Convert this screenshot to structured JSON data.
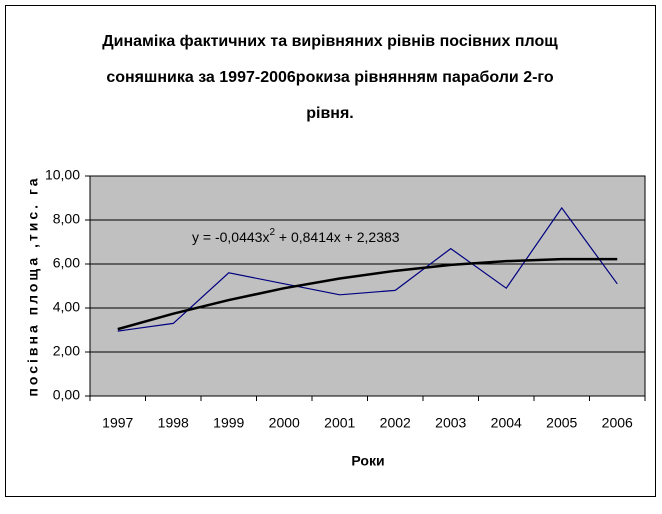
{
  "chart_data": {
    "type": "line",
    "title": [
      "Динаміка фактичних та вирівняних рівнів посівних площ",
      "соняшника за 1997-2006рокиза рівнянням параболи 2-го",
      "рівня."
    ],
    "equation": {
      "main": "y = -0,0443x",
      "sup": "2",
      "rest": " + 0,8414x + 2,2383"
    },
    "x_label": "Роки",
    "y_label": "посівна площа ,тис. га",
    "categories": [
      "1997",
      "1998",
      "1999",
      "2000",
      "2001",
      "2002",
      "2003",
      "2004",
      "2005",
      "2006"
    ],
    "series": [
      {
        "color": "#000080",
        "values": [
          2.95,
          3.3,
          5.6,
          5.1,
          4.6,
          4.8,
          6.7,
          4.9,
          8.55,
          5.1
        ]
      },
      {
        "color": "#000000",
        "values": [
          3.04,
          3.74,
          4.36,
          4.9,
          5.34,
          5.69,
          5.96,
          6.13,
          6.22,
          6.22
        ]
      }
    ],
    "ylim": [
      0,
      10
    ],
    "yticks": [
      {
        "value": 0,
        "label": "0,00"
      },
      {
        "value": 2,
        "label": "2,00"
      },
      {
        "value": 4,
        "label": "4,00"
      },
      {
        "value": 6,
        "label": "6,00"
      },
      {
        "value": 8,
        "label": "8,00"
      },
      {
        "value": 10,
        "label": "10,00"
      }
    ],
    "grid": true,
    "plot_color": "#c0c0c0"
  }
}
